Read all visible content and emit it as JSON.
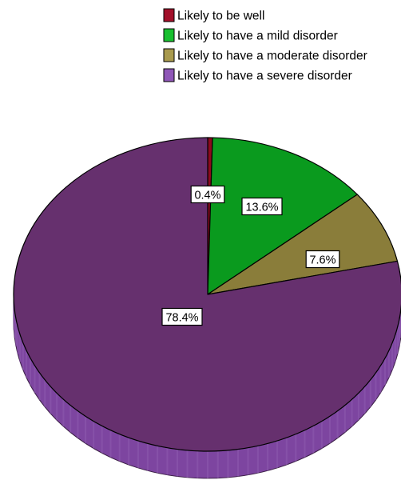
{
  "chart_data": {
    "type": "pie",
    "title": "",
    "legend_position": "top",
    "slices": [
      {
        "label": "Likely to be well",
        "value": 0.4,
        "display": "0.4%",
        "color": "#8b0a1e"
      },
      {
        "label": "Likely to have a mild disorder",
        "value": 13.6,
        "display": "13.6%",
        "color": "#0a9a1e"
      },
      {
        "label": "Likely to have a moderate disorder",
        "value": 7.6,
        "display": "7.6%",
        "color": "#8a7d3a"
      },
      {
        "label": "Likely to have a severe disorder",
        "value": 78.4,
        "display": "78.4%",
        "color": "#66306e"
      }
    ],
    "side_color": "#7d45a0",
    "legend_swatch_colors": [
      "#a2102a",
      "#19c030",
      "#a89a4e",
      "#8f57b7"
    ]
  }
}
